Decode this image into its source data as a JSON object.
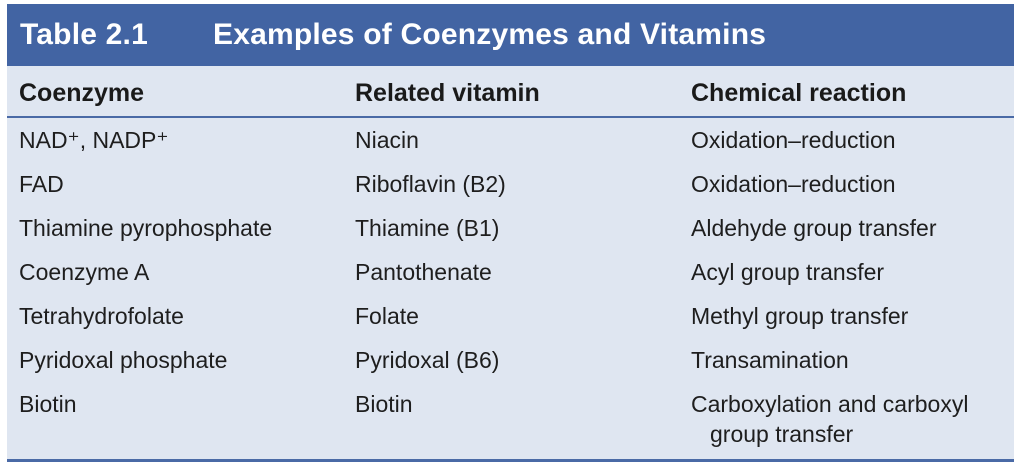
{
  "table": {
    "number": "Table 2.1",
    "title": "Examples of Coenzymes and Vitamins",
    "headers": [
      "Coenzyme",
      "Related vitamin",
      "Chemical reaction"
    ],
    "rows": [
      {
        "coenzyme": "NAD⁺, NADP⁺",
        "vitamin": "Niacin",
        "reaction": "Oxidation–reduction"
      },
      {
        "coenzyme": "FAD",
        "vitamin": "Riboflavin (B2)",
        "reaction": "Oxidation–reduction"
      },
      {
        "coenzyme": "Thiamine pyrophosphate",
        "vitamin": "Thiamine (B1)",
        "reaction": "Aldehyde group transfer"
      },
      {
        "coenzyme": "Coenzyme A",
        "vitamin": "Pantothenate",
        "reaction": "Acyl group transfer"
      },
      {
        "coenzyme": "Tetrahydrofolate",
        "vitamin": "Folate",
        "reaction": "Methyl group transfer"
      },
      {
        "coenzyme": "Pyridoxal phosphate",
        "vitamin": "Pyridoxal (B6)",
        "reaction": "Transamination"
      },
      {
        "coenzyme": "Biotin",
        "vitamin": "Biotin",
        "reaction": "Carboxylation and carboxyl",
        "reaction_cont": "group transfer"
      }
    ]
  },
  "colors": {
    "title_bar": "#4264a3",
    "body_bg": "#dfe6f1",
    "rule": "#4a6aa6"
  }
}
